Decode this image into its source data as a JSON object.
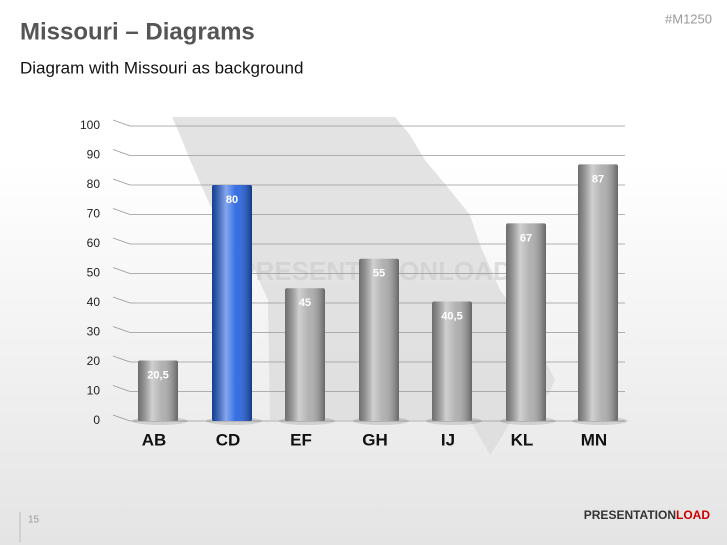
{
  "header": {
    "title": "Missouri – Diagrams",
    "code": "#M1250",
    "subtitle": "Diagram with Missouri as background"
  },
  "chart_data": {
    "type": "bar",
    "categories": [
      "AB",
      "CD",
      "EF",
      "GH",
      "IJ",
      "KL",
      "MN"
    ],
    "values": [
      20.5,
      80,
      45,
      55,
      40.5,
      67,
      87
    ],
    "value_labels": [
      "20,5",
      "80",
      "45",
      "55",
      "40,5",
      "67",
      "87"
    ],
    "colors": [
      "#a9a9a9",
      "#1f5fe0",
      "#a9a9a9",
      "#a9a9a9",
      "#a9a9a9",
      "#a9a9a9",
      "#a9a9a9"
    ],
    "ylim": [
      0,
      100
    ],
    "yticks": [
      0,
      10,
      20,
      30,
      40,
      50,
      60,
      70,
      80,
      90,
      100
    ],
    "grid": true,
    "watermark": "PRESENTATIONLOAD"
  },
  "footer": {
    "page": "15",
    "brand_a": "PRESENTATION",
    "brand_b": "LOAD"
  }
}
